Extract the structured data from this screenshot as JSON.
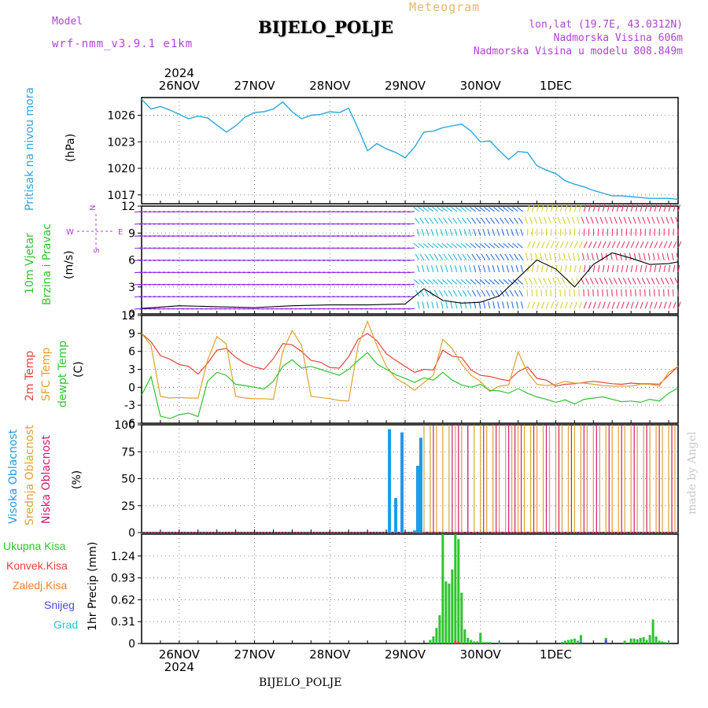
{
  "header": {
    "model_label": "Model",
    "model_name": "wrf-nmm_v3.9.1 e1km",
    "title": "BIJELO_POLJE",
    "subtitle": "Meteogram",
    "coords": "lon,lat (19.7E, 43.0312N)",
    "elevation": "Nadmorska Visina 606m",
    "model_elevation": "Nadmorska Visina u modelu 808.849m",
    "footer_station": "BIJELO_POLJE",
    "watermark": "made by Angel",
    "year": "2024"
  },
  "colors": {
    "pressure": "#29a8e0",
    "t2m": "#e8423a",
    "sfc": "#e0a030",
    "dew": "#2ec42e",
    "high": "#1e9be6",
    "mid": "#e0a030",
    "low": "#d01a6a",
    "total": "#2ec42e",
    "conv": "#e8423a",
    "frz": "#f07e2a",
    "snow": "#4a4adc",
    "grad": "#2cc4c4",
    "wind_label": "#2ec42e",
    "compass": "#b042d6"
  },
  "dates": [
    "26NOV",
    "27NOV",
    "28NOV",
    "29NOV",
    "30NOV",
    "1DEC"
  ],
  "panels": {
    "pressure": {
      "ylabel": "Pritisak na nivou mora",
      "unit": "(hPa)"
    },
    "wind": {
      "ylabel1": "10m Vjetar",
      "ylabel2": "Brzina i Pravac",
      "unit": "(m/s)",
      "compass_n": "N",
      "compass_e": "E",
      "compass_w": "W",
      "compass_s": "S"
    },
    "temp": {
      "ylabel1": "2m Temp",
      "ylabel2": "SFC Temp",
      "ylabel3": "dewpt Temp",
      "unit": "(C)"
    },
    "cloud": {
      "ylabel1": "Visoka Oblacnost",
      "ylabel2": "Srednja Oblacnost",
      "ylabel3": "Niska Oblacnost",
      "unit": "(%)"
    },
    "precip": {
      "legend": [
        "Ukupna Kisa",
        "Konvek.Kisa",
        "Zaledj.Kisa",
        "Snijeg",
        "Grad"
      ],
      "ylabel": "1hr Precip (mm)"
    }
  },
  "chart_data": [
    {
      "type": "line",
      "name": "pressure",
      "x_unit": "hours since 25NOV 12UTC",
      "ylim": [
        1016,
        1028
      ],
      "yticks": [
        1017,
        1020,
        1023,
        1026
      ],
      "x": [
        0,
        3,
        6,
        9,
        12,
        15,
        18,
        21,
        24,
        27,
        30,
        33,
        36,
        39,
        42,
        45,
        48,
        51,
        54,
        57,
        60,
        63,
        66,
        69,
        72,
        75,
        78,
        81,
        84,
        87,
        90,
        93,
        96,
        99,
        102,
        105,
        108,
        111,
        114,
        117,
        120,
        123,
        126,
        129,
        132,
        135,
        138,
        141,
        144,
        147,
        150,
        153,
        156,
        159,
        162,
        165,
        168,
        171
      ],
      "y": [
        1027.8,
        1026.7,
        1027.0,
        1026.6,
        1026.1,
        1025.6,
        1025.9,
        1025.7,
        1024.9,
        1024.1,
        1024.8,
        1025.8,
        1026.3,
        1026.4,
        1026.7,
        1027.5,
        1026.4,
        1025.6,
        1026.0,
        1026.1,
        1026.4,
        1026.3,
        1026.8,
        1024.5,
        1022.0,
        1022.8,
        1022.2,
        1021.8,
        1021.2,
        1022.4,
        1024.1,
        1024.2,
        1024.6,
        1024.8,
        1025.0,
        1024.2,
        1023.0,
        1023.1,
        1022.0,
        1021.0,
        1021.9,
        1021.8,
        1020.3,
        1019.8,
        1019.4,
        1018.6,
        1018.2,
        1017.9,
        1017.5,
        1017.2,
        1016.9,
        1016.9,
        1016.8,
        1016.7,
        1016.6,
        1016.6,
        1016.6,
        1016.5
      ]
    },
    {
      "type": "line",
      "name": "wind",
      "ylim": [
        0,
        12
      ],
      "yticks": [
        0,
        3,
        6,
        9,
        12
      ],
      "series": [
        {
          "name": "speed",
          "x": [
            0,
            12,
            24,
            36,
            48,
            60,
            72,
            84,
            90,
            96,
            102,
            108,
            114,
            120,
            126,
            132,
            138,
            144,
            150,
            156,
            162,
            168,
            171
          ],
          "y": [
            0.6,
            0.9,
            0.8,
            0.7,
            0.9,
            1.0,
            1.0,
            1.1,
            2.8,
            1.5,
            1.2,
            1.3,
            2.0,
            4.0,
            6.0,
            5.0,
            3.0,
            5.5,
            6.8,
            6.2,
            5.5,
            5.6,
            5.8
          ]
        }
      ]
    },
    {
      "type": "line",
      "name": "temperature",
      "ylim": [
        -6,
        12
      ],
      "yticks": [
        -6,
        -3,
        0,
        3,
        6,
        9,
        12
      ],
      "series": [
        {
          "name": "2m Temp",
          "x": [
            0,
            3,
            6,
            9,
            12,
            15,
            18,
            21,
            24,
            27,
            30,
            33,
            36,
            39,
            42,
            45,
            48,
            51,
            54,
            57,
            60,
            63,
            66,
            69,
            72,
            75,
            78,
            81,
            84,
            87,
            90,
            93,
            96,
            99,
            102,
            105,
            108,
            111,
            114,
            117,
            120,
            123,
            126,
            129,
            132,
            135,
            138,
            141,
            144,
            147,
            150,
            153,
            156,
            159,
            162,
            165,
            168,
            171
          ],
          "y": [
            9.0,
            7.6,
            5.3,
            4.7,
            3.8,
            3.5,
            2.2,
            4.0,
            6.2,
            6.5,
            5.0,
            4.0,
            3.4,
            3.0,
            4.8,
            7.3,
            7.1,
            6.0,
            4.5,
            4.2,
            3.3,
            3.2,
            5.1,
            8.0,
            9.0,
            7.8,
            5.6,
            4.5,
            3.5,
            2.5,
            3.0,
            2.9,
            6.2,
            5.2,
            5.0,
            2.9,
            2.0,
            1.8,
            1.4,
            1.1,
            2.6,
            3.4,
            1.5,
            1.2,
            0.2,
            0.5,
            0.6,
            0.8,
            1.0,
            0.8,
            0.6,
            0.5,
            0.7,
            0.6,
            0.6,
            0.5,
            2.0,
            3.5
          ]
        },
        {
          "name": "SFC Temp",
          "x": [
            0,
            3,
            6,
            9,
            12,
            15,
            18,
            21,
            24,
            27,
            30,
            33,
            36,
            39,
            42,
            45,
            48,
            51,
            54,
            57,
            60,
            63,
            66,
            69,
            72,
            75,
            78,
            81,
            84,
            87,
            90,
            93,
            96,
            99,
            102,
            105,
            108,
            111,
            114,
            117,
            120,
            123,
            126,
            129,
            132,
            135,
            138,
            141,
            144,
            147,
            150,
            153,
            156,
            159,
            162,
            165,
            168,
            171
          ],
          "y": [
            9.0,
            7.0,
            -1.5,
            -1.8,
            -1.7,
            -1.8,
            -1.8,
            4.5,
            8.5,
            7.2,
            -1.5,
            -1.8,
            -1.9,
            -1.9,
            -2.0,
            6.0,
            9.5,
            7.0,
            -1.5,
            -1.7,
            -1.9,
            -2.2,
            -2.3,
            7.0,
            11.0,
            7.0,
            3.5,
            1.5,
            0.6,
            -0.5,
            0.8,
            2.0,
            8.0,
            6.5,
            3.9,
            2.0,
            1.0,
            -0.7,
            0.2,
            0.4,
            5.9,
            2.5,
            0.5,
            0.3,
            0.5,
            1.0,
            0.7,
            0.7,
            0.5,
            0.3,
            0.2,
            0.2,
            0.2,
            0.5,
            0.5,
            0.2,
            2.5,
            3.5
          ]
        },
        {
          "name": "dewpt Temp",
          "x": [
            0,
            3,
            6,
            9,
            12,
            15,
            18,
            21,
            24,
            27,
            30,
            33,
            36,
            39,
            42,
            45,
            48,
            51,
            54,
            57,
            60,
            63,
            66,
            69,
            72,
            75,
            78,
            81,
            84,
            87,
            90,
            93,
            96,
            99,
            102,
            105,
            108,
            111,
            114,
            117,
            120,
            123,
            126,
            129,
            132,
            135,
            138,
            141,
            144,
            147,
            150,
            153,
            156,
            159,
            162,
            165,
            168,
            171
          ],
          "y": [
            -1.3,
            1.8,
            -4.8,
            -5.2,
            -4.6,
            -4.3,
            -4.9,
            1.0,
            2.5,
            2.0,
            0.5,
            0.3,
            0.0,
            -0.3,
            1.0,
            3.5,
            4.6,
            3.2,
            3.5,
            3.0,
            2.5,
            2.0,
            3.0,
            4.5,
            5.8,
            3.9,
            3.0,
            2.1,
            1.5,
            0.8,
            1.6,
            1.2,
            2.5,
            1.2,
            0.4,
            0.0,
            0.5,
            -0.5,
            -0.6,
            -1.0,
            -0.2,
            -1.0,
            -1.6,
            -2.0,
            -2.5,
            -2.1,
            -2.8,
            -2.0,
            -1.8,
            -1.6,
            -2.0,
            -2.4,
            -2.3,
            -2.5,
            -2.0,
            -2.3,
            -1.0,
            -0.1
          ]
        }
      ]
    },
    {
      "type": "bar",
      "name": "cloud cover",
      "ylim": [
        0,
        100
      ],
      "yticks": [
        0,
        25,
        50,
        75,
        100
      ],
      "series": [
        {
          "name": "Visoka Oblacnost",
          "x": [
            79,
            81,
            83,
            87,
            88,
            89
          ],
          "y": [
            96,
            32,
            93,
            2,
            62,
            88
          ]
        },
        {
          "name": "Srednja Oblacnost",
          "x": [
            90,
            92,
            94,
            96,
            98,
            100,
            102,
            104,
            106,
            108,
            110,
            112,
            114,
            116,
            118,
            120,
            122,
            124,
            126,
            128,
            130,
            132,
            134,
            136,
            138,
            140,
            142,
            144,
            146,
            148,
            150,
            152,
            154,
            156,
            158,
            160,
            162,
            164,
            166,
            168,
            170
          ],
          "y": [
            100,
            100,
            100,
            100,
            100,
            100,
            100,
            100,
            100,
            100,
            100,
            100,
            100,
            100,
            100,
            100,
            100,
            100,
            100,
            100,
            100,
            100,
            100,
            100,
            100,
            100,
            100,
            100,
            100,
            100,
            100,
            100,
            100,
            100,
            100,
            100,
            100,
            100,
            100,
            100,
            100
          ]
        },
        {
          "name": "Niska Oblacnost",
          "x": [
            93,
            99,
            101,
            104,
            109,
            113,
            117,
            119,
            121,
            125,
            129,
            133,
            137,
            141,
            145,
            149,
            153,
            157,
            161,
            165,
            169
          ],
          "y": [
            100,
            100,
            100,
            100,
            100,
            100,
            100,
            100,
            100,
            100,
            100,
            100,
            100,
            100,
            100,
            100,
            100,
            100,
            100,
            100,
            100
          ]
        }
      ]
    },
    {
      "type": "bar",
      "name": "1hr precipitation",
      "ylim": [
        0,
        1.55
      ],
      "yticks": [
        0,
        0.31,
        0.62,
        0.93,
        1.24
      ],
      "series": [
        {
          "name": "Ukupna Kisa",
          "x": [
            92,
            93,
            94,
            95,
            96,
            97,
            98,
            99,
            100,
            101,
            102,
            103,
            104,
            105,
            106,
            107,
            108,
            109,
            110,
            111,
            114,
            134,
            135,
            136,
            137,
            138,
            139,
            140,
            148,
            154,
            156,
            157,
            158,
            159,
            160,
            161,
            162,
            163,
            164,
            165,
            166,
            167,
            168
          ],
          "y": [
            0.05,
            0.1,
            0.22,
            0.4,
            1.55,
            0.88,
            0.85,
            1.05,
            1.55,
            1.48,
            0.72,
            0.2,
            0.08,
            0.05,
            0.03,
            0.03,
            0.15,
            0.02,
            0.02,
            0.02,
            0.02,
            0.02,
            0.04,
            0.05,
            0.06,
            0.07,
            0.04,
            0.12,
            0.08,
            0.04,
            0.07,
            0.07,
            0.06,
            0.08,
            0.09,
            0.05,
            0.12,
            0.34,
            0.1,
            0.04,
            0.03,
            0.02,
            0.01
          ]
        },
        {
          "name": "Konvek.Kisa",
          "x": [
            100,
            101
          ],
          "y": [
            0.04,
            0.03
          ]
        },
        {
          "name": "Snijeg",
          "x": [
            140,
            148
          ],
          "y": [
            0.02,
            0.05
          ]
        }
      ]
    }
  ]
}
